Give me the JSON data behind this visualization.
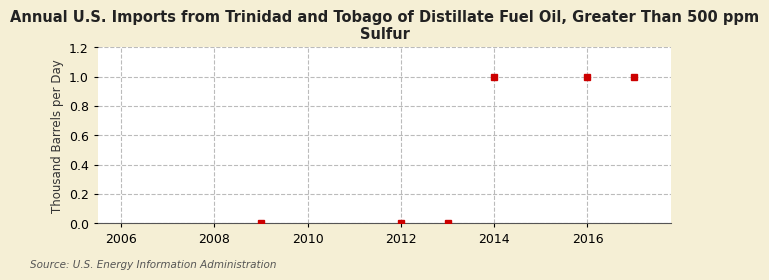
{
  "title": "Annual U.S. Imports from Trinidad and Tobago of Distillate Fuel Oil, Greater Than 500 ppm\nSulfur",
  "ylabel": "Thousand Barrels per Day",
  "source": "Source: U.S. Energy Information Administration",
  "figure_bg": "#f5efd5",
  "plot_bg": "#ffffff",
  "xlim": [
    2005.5,
    2017.8
  ],
  "ylim": [
    0.0,
    1.2
  ],
  "yticks": [
    0.0,
    0.2,
    0.4,
    0.6,
    0.8,
    1.0,
    1.2
  ],
  "xticks": [
    2006,
    2008,
    2010,
    2012,
    2014,
    2016
  ],
  "data_x": [
    2009,
    2012,
    2013,
    2014,
    2016,
    2017
  ],
  "data_y": [
    0.0,
    0.0,
    0.0,
    1.0,
    1.0,
    1.0
  ],
  "marker_color": "#cc0000",
  "marker": "s",
  "marker_size": 4,
  "grid_color": "#bbbbbb",
  "grid_style": "--",
  "title_fontsize": 10.5,
  "axis_label_fontsize": 8.5,
  "tick_fontsize": 9,
  "source_fontsize": 7.5
}
